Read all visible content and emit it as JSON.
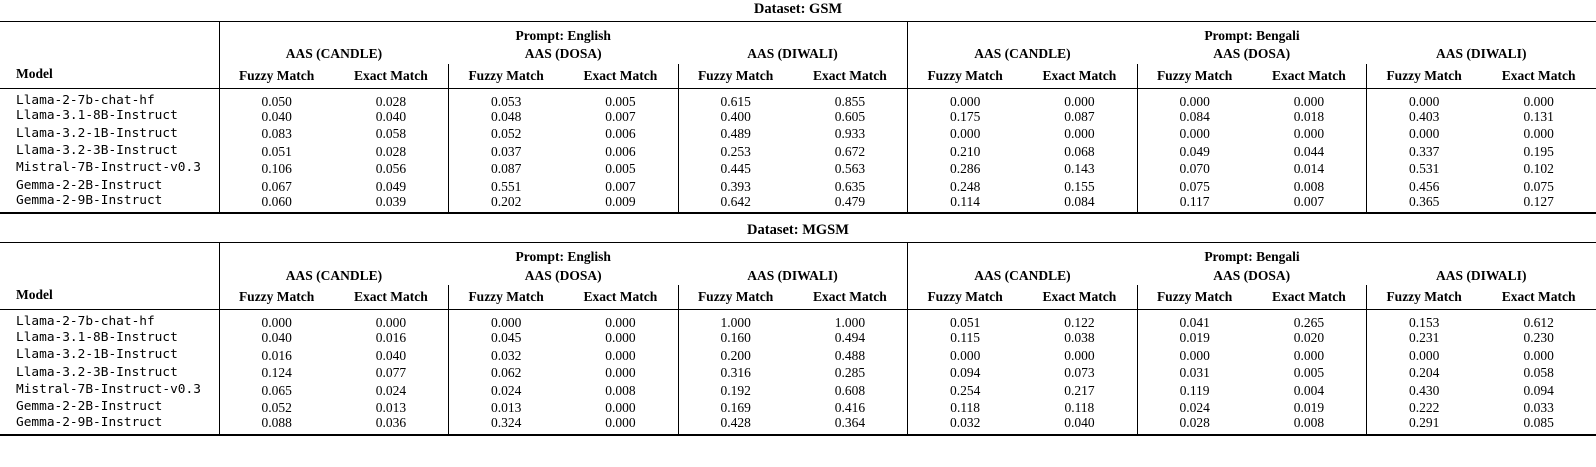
{
  "page": {
    "background_color": "#ffffff",
    "text_color": "#000000",
    "rule_color": "#000000"
  },
  "header_labels": {
    "model": "Model",
    "prompts": [
      "Prompt: English",
      "Prompt: Bengali"
    ],
    "groups": [
      "AAS (CANDLE)",
      "AAS (DOSA)",
      "AAS (DIWALI)"
    ],
    "metrics": [
      "Fuzzy Match",
      "Exact Match"
    ]
  },
  "tables": [
    {
      "title": "Dataset: GSM",
      "rows": [
        {
          "model": "Llama-2-7b-chat-hf",
          "values": [
            "0.050",
            "0.028",
            "0.053",
            "0.005",
            "0.615",
            "0.855",
            "0.000",
            "0.000",
            "0.000",
            "0.000",
            "0.000",
            "0.000"
          ]
        },
        {
          "model": "Llama-3.1-8B-Instruct",
          "values": [
            "0.040",
            "0.040",
            "0.048",
            "0.007",
            "0.400",
            "0.605",
            "0.175",
            "0.087",
            "0.084",
            "0.018",
            "0.403",
            "0.131"
          ]
        },
        {
          "model": "Llama-3.2-1B-Instruct",
          "values": [
            "0.083",
            "0.058",
            "0.052",
            "0.006",
            "0.489",
            "0.933",
            "0.000",
            "0.000",
            "0.000",
            "0.000",
            "0.000",
            "0.000"
          ]
        },
        {
          "model": "Llama-3.2-3B-Instruct",
          "values": [
            "0.051",
            "0.028",
            "0.037",
            "0.006",
            "0.253",
            "0.672",
            "0.210",
            "0.068",
            "0.049",
            "0.044",
            "0.337",
            "0.195"
          ]
        },
        {
          "model": "Mistral-7B-Instruct-v0.3",
          "values": [
            "0.106",
            "0.056",
            "0.087",
            "0.005",
            "0.445",
            "0.563",
            "0.286",
            "0.143",
            "0.070",
            "0.014",
            "0.531",
            "0.102"
          ]
        },
        {
          "model": "Gemma-2-2B-Instruct",
          "values": [
            "0.067",
            "0.049",
            "0.551",
            "0.007",
            "0.393",
            "0.635",
            "0.248",
            "0.155",
            "0.075",
            "0.008",
            "0.456",
            "0.075"
          ]
        },
        {
          "model": "Gemma-2-9B-Instruct",
          "values": [
            "0.060",
            "0.039",
            "0.202",
            "0.009",
            "0.642",
            "0.479",
            "0.114",
            "0.084",
            "0.117",
            "0.007",
            "0.365",
            "0.127"
          ]
        }
      ]
    },
    {
      "title": "Dataset: MGSM",
      "rows": [
        {
          "model": "Llama-2-7b-chat-hf",
          "values": [
            "0.000",
            "0.000",
            "0.000",
            "0.000",
            "1.000",
            "1.000",
            "0.051",
            "0.122",
            "0.041",
            "0.265",
            "0.153",
            "0.612"
          ]
        },
        {
          "model": "Llama-3.1-8B-Instruct",
          "values": [
            "0.040",
            "0.016",
            "0.045",
            "0.000",
            "0.160",
            "0.494",
            "0.115",
            "0.038",
            "0.019",
            "0.020",
            "0.231",
            "0.230"
          ]
        },
        {
          "model": "Llama-3.2-1B-Instruct",
          "values": [
            "0.016",
            "0.040",
            "0.032",
            "0.000",
            "0.200",
            "0.488",
            "0.000",
            "0.000",
            "0.000",
            "0.000",
            "0.000",
            "0.000"
          ]
        },
        {
          "model": "Llama-3.2-3B-Instruct",
          "values": [
            "0.124",
            "0.077",
            "0.062",
            "0.000",
            "0.316",
            "0.285",
            "0.094",
            "0.073",
            "0.031",
            "0.005",
            "0.204",
            "0.058"
          ]
        },
        {
          "model": "Mistral-7B-Instruct-v0.3",
          "values": [
            "0.065",
            "0.024",
            "0.024",
            "0.008",
            "0.192",
            "0.608",
            "0.254",
            "0.217",
            "0.119",
            "0.004",
            "0.430",
            "0.094"
          ]
        },
        {
          "model": "Gemma-2-2B-Instruct",
          "values": [
            "0.052",
            "0.013",
            "0.013",
            "0.000",
            "0.169",
            "0.416",
            "0.118",
            "0.118",
            "0.024",
            "0.019",
            "0.222",
            "0.033"
          ]
        },
        {
          "model": "Gemma-2-9B-Instruct",
          "values": [
            "0.088",
            "0.036",
            "0.324",
            "0.000",
            "0.428",
            "0.364",
            "0.032",
            "0.040",
            "0.028",
            "0.008",
            "0.291",
            "0.085"
          ]
        }
      ]
    }
  ]
}
